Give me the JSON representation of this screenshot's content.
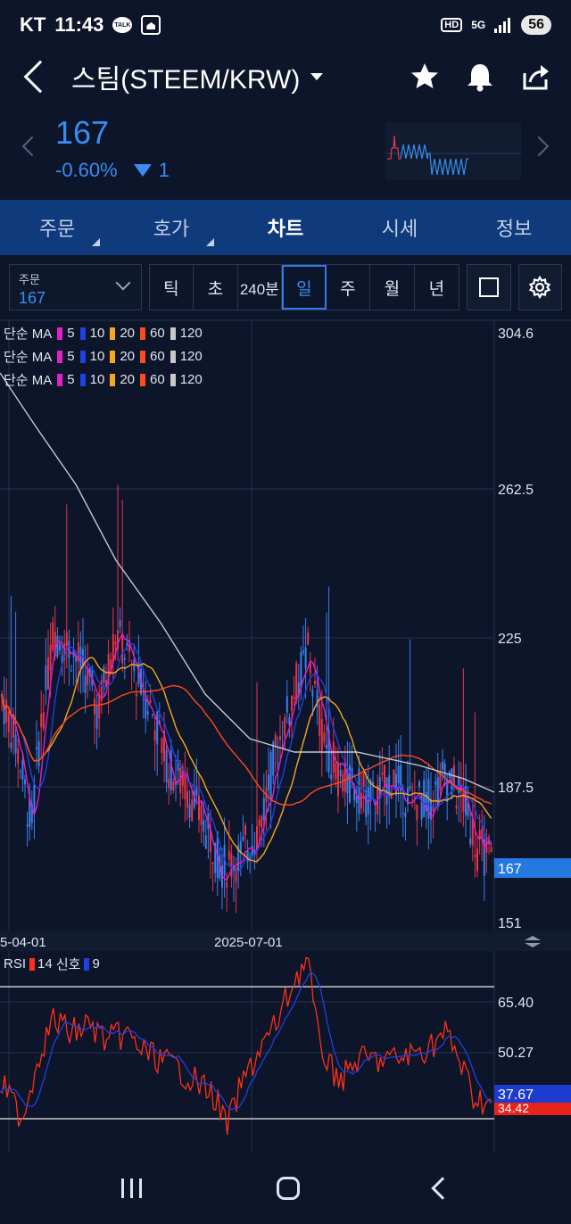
{
  "status_bar": {
    "carrier": "KT",
    "time": "11:43",
    "talk_badge": "TALK",
    "hd_badge": "HD",
    "network": "5G",
    "battery": "56"
  },
  "header": {
    "title": "스팀(STEEM/KRW)"
  },
  "price": {
    "current": "167",
    "change_pct": "-0.60%",
    "change_amt": "1"
  },
  "tabs": [
    {
      "label": "주문"
    },
    {
      "label": "호가"
    },
    {
      "label": "차트"
    },
    {
      "label": "시세"
    },
    {
      "label": "정보"
    }
  ],
  "order_select": {
    "label": "주문",
    "value": "167"
  },
  "periods": [
    "틱",
    "초",
    "240분",
    "일",
    "주",
    "월",
    "년"
  ],
  "ma_legend": {
    "prefix": "단순 MA",
    "items": [
      {
        "value": "5",
        "color": "#e020c8"
      },
      {
        "value": "10",
        "color": "#2040e0"
      },
      {
        "value": "20",
        "color": "#f5a623"
      },
      {
        "value": "60",
        "color": "#ff4a1a"
      },
      {
        "value": "120",
        "color": "#c8c8c8"
      }
    ]
  },
  "rsi_legend": {
    "label": "RSI",
    "period": "14",
    "signal_label": "신호",
    "signal_period": "9",
    "rsi_color": "#ff3018",
    "signal_color": "#2040e0"
  },
  "chart_data": [
    {
      "type": "candlestick",
      "title": "",
      "y_ticks": [
        "304.6",
        "262.5",
        "225",
        "187.5",
        "151"
      ],
      "ylim": [
        151,
        304.6
      ],
      "x_ticks": [
        "5-04-01",
        "2025-07-01"
      ],
      "current_price_label": "167",
      "series": [
        {
          "name": "MA 5"
        },
        {
          "name": "MA 10"
        },
        {
          "name": "MA 20"
        },
        {
          "name": "MA 60"
        },
        {
          "name": "MA 120"
        }
      ]
    },
    {
      "type": "line",
      "title": "",
      "y_ticks": [
        "65.40",
        "50.27"
      ],
      "labels": {
        "signal": "37.67",
        "rsi": "34.42"
      }
    }
  ]
}
